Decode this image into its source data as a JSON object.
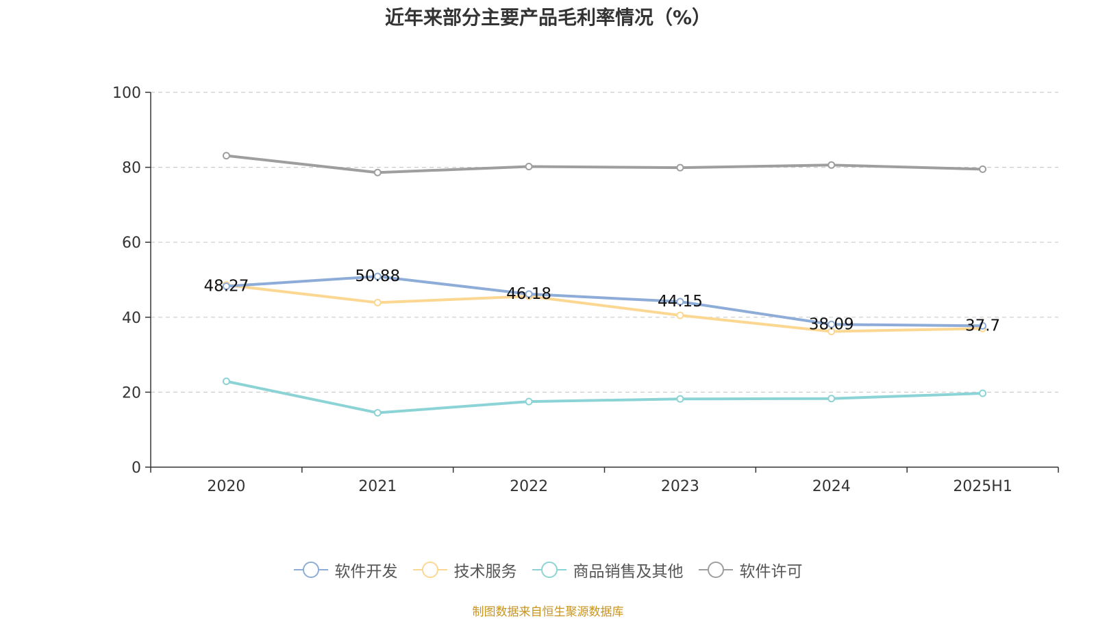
{
  "chart_data": {
    "type": "line",
    "title": "近年来部分主要产品毛利率情况（%）",
    "categories": [
      "2020",
      "2021",
      "2022",
      "2023",
      "2024",
      "2025H1"
    ],
    "ylim": [
      0,
      100
    ],
    "yticks": [
      "0",
      "20",
      "40",
      "60",
      "80",
      "100"
    ],
    "grid": true,
    "legend_position": "bottom",
    "series": [
      {
        "name": "软件开发",
        "color": "#8eacd8",
        "values": [
          48.27,
          50.88,
          46.18,
          44.15,
          38.09,
          37.7
        ],
        "labels": [
          "48.27",
          "50.88",
          "46.18",
          "44.15",
          "38.09",
          "37.7"
        ]
      },
      {
        "name": "技术服务",
        "color": "#fcd792",
        "values": [
          48.6,
          43.9,
          45.6,
          40.5,
          36.2,
          37.0
        ]
      },
      {
        "name": "商品销售及其他",
        "color": "#8cd3d6",
        "values": [
          22.9,
          14.5,
          17.5,
          18.2,
          18.3,
          19.7
        ]
      },
      {
        "name": "软件许可",
        "color": "#9e9e9e",
        "values": [
          83.1,
          78.6,
          80.2,
          79.9,
          80.6,
          79.5
        ]
      }
    ]
  },
  "source_note": "制图数据来自恒生聚源数据库"
}
